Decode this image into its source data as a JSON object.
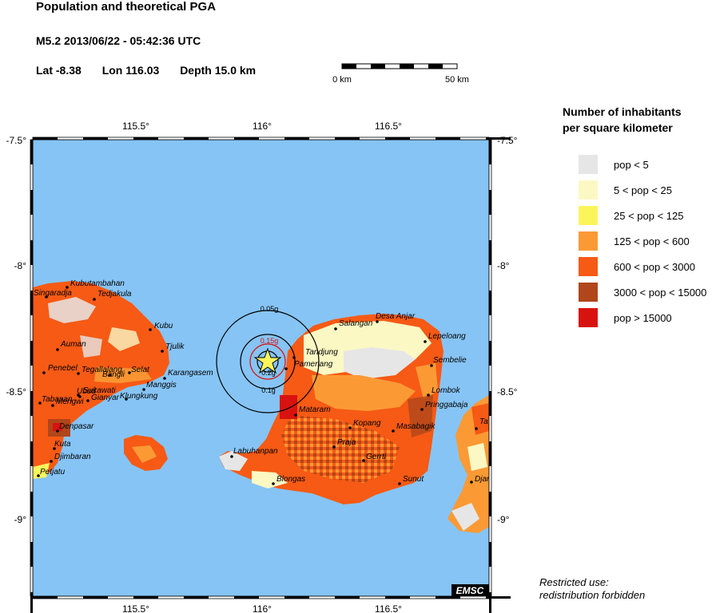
{
  "header": {
    "title": "Population and theoretical PGA",
    "quake": "M5.2  2013/06/22 - 05:42:36 UTC",
    "lat": "Lat -8.38",
    "lon": "Lon 116.03",
    "depth": "Depth  15.0 km"
  },
  "scale": {
    "start_label": "0 km",
    "end_label": "50 km"
  },
  "axes": {
    "lon_ticks": [
      "115.5°",
      "116°",
      "116.5°"
    ],
    "lat_ticks": [
      "-7.5°",
      "-8°",
      "-8.5°",
      "-9°"
    ]
  },
  "legend": {
    "title_line1": "Number of inhabitants",
    "title_line2": "per square kilometer",
    "items": [
      {
        "label": "pop < 5",
        "color": "#e6e6e6"
      },
      {
        "label": "5 < pop < 25",
        "color": "#fbf8c4"
      },
      {
        "label": "25 < pop < 125",
        "color": "#fbf55c"
      },
      {
        "label": "125 < pop < 600",
        "color": "#fb9a35"
      },
      {
        "label": "600 < pop < 3000",
        "color": "#f65a15"
      },
      {
        "label": "3000 < pop < 15000",
        "color": "#b0461a"
      },
      {
        "label": "pop > 15000",
        "color": "#d8130f"
      }
    ]
  },
  "pga_contours": [
    {
      "label": "0.05g",
      "color": "#000000"
    },
    {
      "label": "0.15g",
      "color": "#d8130f"
    },
    {
      "label": "0.2g",
      "color": "#000000"
    },
    {
      "label": "0.1g",
      "color": "#000000"
    }
  ],
  "places": [
    "Kubutambahan",
    "Singaradja",
    "Tedjakula",
    "Kubu",
    "Tjulik",
    "Auman",
    "Penebel",
    "Tegallalang",
    "Sukawati",
    "Bangli",
    "Selat",
    "Karangasem",
    "Manggis",
    "Ubud",
    "Gianyar",
    "Klungkung",
    "Tabanan",
    "Mengwi",
    "Denpasar",
    "Kuta",
    "Djimbaran",
    "Petjatu",
    "Salangan",
    "Desa Anjar",
    "Lepeloang",
    "Tandjung",
    "Sembelie",
    "Pamenang",
    "Lombok",
    "Pringgabaja",
    "Mataram",
    "Kopang",
    "Masabagik",
    "Praja",
    "Gerrti",
    "Labuhanpan",
    "Blongas",
    "Sunut",
    "Ta",
    "Djar"
  ],
  "colors": {
    "sea": "#86c4f5"
  },
  "badge": "EMSC",
  "footer": {
    "line1": "Restricted use:",
    "line2": "redistribution forbidden"
  }
}
